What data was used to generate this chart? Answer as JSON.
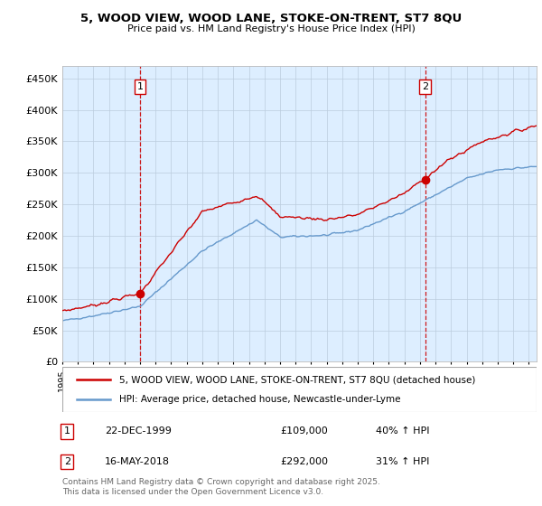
{
  "title1": "5, WOOD VIEW, WOOD LANE, STOKE-ON-TRENT, ST7 8QU",
  "title2": "Price paid vs. HM Land Registry's House Price Index (HPI)",
  "property_label": "5, WOOD VIEW, WOOD LANE, STOKE-ON-TRENT, ST7 8QU (detached house)",
  "hpi_label": "HPI: Average price, detached house, Newcastle-under-Lyme",
  "sale1_date": "22-DEC-1999",
  "sale1_price": 109000,
  "sale1_hpi": "40% ↑ HPI",
  "sale2_date": "16-MAY-2018",
  "sale2_price": 292000,
  "sale2_hpi": "31% ↑ HPI",
  "ylim": [
    0,
    470000
  ],
  "xlim_start": 1995.0,
  "xlim_end": 2025.5,
  "property_color": "#cc0000",
  "hpi_color": "#6699cc",
  "chart_bg_color": "#ddeeff",
  "background_color": "#ffffff",
  "grid_color": "#bbccdd",
  "sale1_x": 1999.97,
  "sale2_x": 2018.37,
  "footnote": "Contains HM Land Registry data © Crown copyright and database right 2025.\nThis data is licensed under the Open Government Licence v3.0."
}
